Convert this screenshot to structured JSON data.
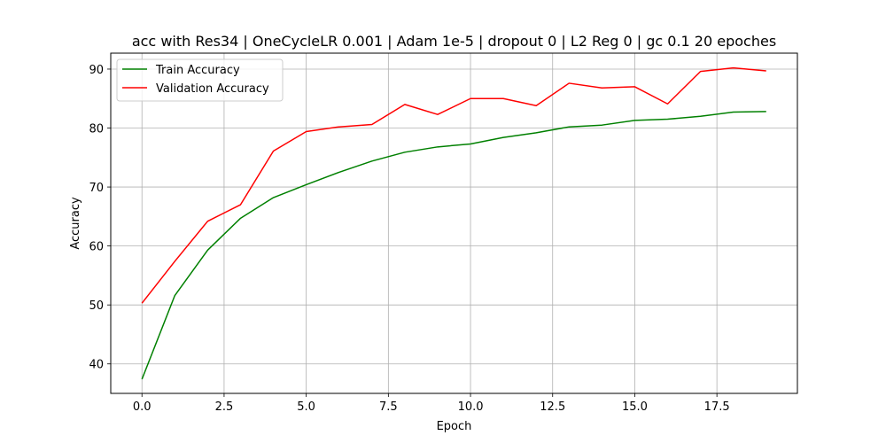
{
  "chart_data": {
    "type": "line",
    "title": "acc with Res34 | OneCycleLR 0.001 | Adam 1e-5 | dropout 0 | L2 Reg 0 | gc 0.1 20 epoches",
    "xlabel": "Epoch",
    "ylabel": "Accuracy",
    "xlim": [
      -0.95,
      19.95
    ],
    "ylim": [
      35,
      92.7
    ],
    "xticks": [
      0.0,
      2.5,
      5.0,
      7.5,
      10.0,
      12.5,
      15.0,
      17.5
    ],
    "xtick_labels": [
      "0.0",
      "2.5",
      "5.0",
      "7.5",
      "10.0",
      "12.5",
      "15.0",
      "17.5"
    ],
    "yticks": [
      40,
      50,
      60,
      70,
      80,
      90
    ],
    "ytick_labels": [
      "40",
      "50",
      "60",
      "70",
      "80",
      "90"
    ],
    "grid": true,
    "legend_position": "top-left",
    "x": [
      0,
      1,
      2,
      3,
      4,
      5,
      6,
      7,
      8,
      9,
      10,
      11,
      12,
      13,
      14,
      15,
      16,
      17,
      18,
      19
    ],
    "series": [
      {
        "name": "Train Accuracy",
        "color": "#008000",
        "values": [
          37.4,
          51.6,
          59.3,
          64.7,
          68.2,
          70.4,
          72.5,
          74.4,
          75.9,
          76.8,
          77.3,
          78.4,
          79.2,
          80.2,
          80.5,
          81.3,
          81.5,
          82.0,
          82.7,
          82.8
        ]
      },
      {
        "name": "Validation Accuracy",
        "color": "#ff0000",
        "values": [
          50.3,
          57.4,
          64.2,
          67.0,
          76.1,
          79.4,
          80.2,
          80.6,
          84.0,
          82.3,
          85.0,
          85.0,
          83.8,
          87.6,
          86.8,
          87.0,
          84.1,
          89.6,
          90.2,
          89.7
        ]
      }
    ]
  }
}
